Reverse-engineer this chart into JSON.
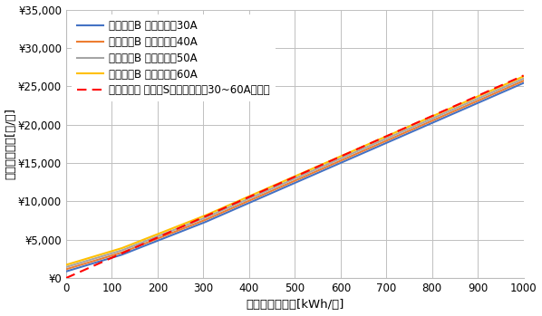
{
  "xlabel": "月間電力使用量[kWh/月]",
  "ylabel": "推定電気料金[円/月]",
  "xlim": [
    0,
    1000
  ],
  "ylim": [
    0,
    35000
  ],
  "yticks": [
    0,
    5000,
    10000,
    15000,
    20000,
    25000,
    30000,
    35000
  ],
  "xticks": [
    0,
    100,
    200,
    300,
    400,
    500,
    600,
    700,
    800,
    900,
    1000
  ],
  "plans_tohoku": [
    {
      "label": "従量電灯B 契約容量：30A",
      "color": "#4472C4",
      "basic": 858.0
    },
    {
      "label": "従量電灯B 契約容量：40A",
      "color": "#ED7D31",
      "basic": 1144.0
    },
    {
      "label": "従量電灯B 契約容量：50A",
      "color": "#A5A5A5",
      "basic": 1430.0
    },
    {
      "label": "従量電灯B 契約容量：60A",
      "color": "#FFC000",
      "basic": 1716.0
    }
  ],
  "tohoku_tiers": [
    {
      "limit": 120,
      "rate": 17.78
    },
    {
      "limit": 300,
      "rate": 23.3
    },
    {
      "limit": 999999,
      "rate": 26.06
    }
  ],
  "rakuten_label": "楽天でんき プランS（契約容量：30~60A共通）",
  "rakuten_color": "#FF0000",
  "rakuten_rate": 26.4,
  "line_width": 1.5,
  "bg_color": "#FFFFFF",
  "grid_color": "#C0C0C0",
  "legend_fontsize": 8.5,
  "axis_label_fontsize": 9.5,
  "tick_fontsize": 8.5
}
